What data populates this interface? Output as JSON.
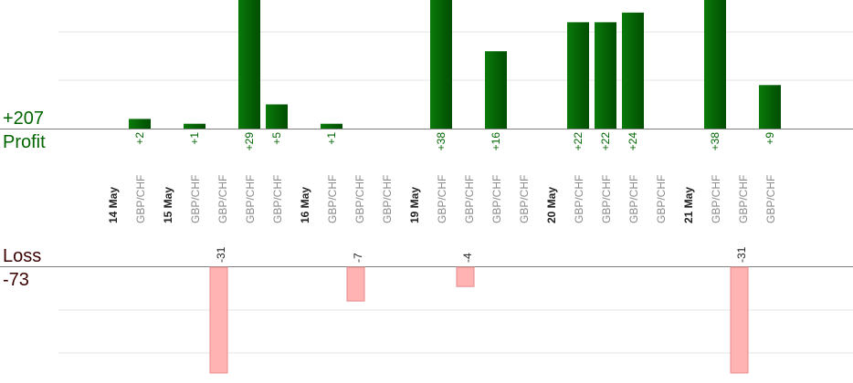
{
  "summary": {
    "profit_total": "+207",
    "profit_label": "Profit",
    "loss_label": "Loss",
    "loss_total": "-73"
  },
  "colors": {
    "profit_bar_dark": "#004d00",
    "profit_bar_light": "#0a7a0a",
    "profit_text": "#006400",
    "loss_bar": "#ffb3b3",
    "loss_bar_edge": "#e88a8a",
    "grid": "#e6e6e6",
    "axis": "#808080",
    "date_text": "#222222",
    "pair_text": "#8a8a8a"
  },
  "chart_data": {
    "type": "bar",
    "columns": [
      {
        "label": "14 May",
        "kind": "date",
        "profit": null,
        "loss": null
      },
      {
        "label": "GBP/CHF",
        "kind": "trade",
        "profit": 2,
        "profit_label": "+2",
        "loss": null
      },
      {
        "label": "15 May",
        "kind": "date",
        "profit": null,
        "loss": null
      },
      {
        "label": "GBP/CHF",
        "kind": "trade",
        "profit": 1,
        "profit_label": "+1",
        "loss": null
      },
      {
        "label": "GBP/CHF",
        "kind": "trade",
        "profit": null,
        "loss": -31,
        "loss_label": "-31"
      },
      {
        "label": "GBP/CHF",
        "kind": "trade",
        "profit": 29,
        "profit_label": "+29",
        "loss": null
      },
      {
        "label": "GBP/CHF",
        "kind": "trade",
        "profit": 5,
        "profit_label": "+5",
        "loss": null
      },
      {
        "label": "16 May",
        "kind": "date",
        "profit": null,
        "loss": null
      },
      {
        "label": "GBP/CHF",
        "kind": "trade",
        "profit": 1,
        "profit_label": "+1",
        "loss": null
      },
      {
        "label": "GBP/CHF",
        "kind": "trade",
        "profit": null,
        "loss": -7,
        "loss_label": "-7"
      },
      {
        "label": "GBP/CHF",
        "kind": "trade",
        "profit": null,
        "loss": null
      },
      {
        "label": "19 May",
        "kind": "date",
        "profit": null,
        "loss": null
      },
      {
        "label": "GBP/CHF",
        "kind": "trade",
        "profit": 38,
        "profit_label": "+38",
        "loss": null
      },
      {
        "label": "GBP/CHF",
        "kind": "trade",
        "profit": null,
        "loss": -4,
        "loss_label": "-4"
      },
      {
        "label": "GBP/CHF",
        "kind": "trade",
        "profit": 16,
        "profit_label": "+16",
        "loss": null
      },
      {
        "label": "GBP/CHF",
        "kind": "trade",
        "profit": null,
        "loss": null
      },
      {
        "label": "20 May",
        "kind": "date",
        "profit": null,
        "loss": null
      },
      {
        "label": "GBP/CHF",
        "kind": "trade",
        "profit": 22,
        "profit_label": "+22",
        "loss": null
      },
      {
        "label": "GBP/CHF",
        "kind": "trade",
        "profit": 22,
        "profit_label": "+22",
        "loss": null
      },
      {
        "label": "GBP/CHF",
        "kind": "trade",
        "profit": 24,
        "profit_label": "+24",
        "loss": null
      },
      {
        "label": "GBP/CHF",
        "kind": "trade",
        "profit": null,
        "loss": null
      },
      {
        "label": "21 May",
        "kind": "date",
        "profit": null,
        "loss": null
      },
      {
        "label": "GBP/CHF",
        "kind": "trade",
        "profit": 38,
        "profit_label": "+38",
        "loss": null
      },
      {
        "label": "GBP/CHF",
        "kind": "trade",
        "profit": null,
        "loss": -31,
        "loss_label": "-31"
      },
      {
        "label": "GBP/CHF",
        "kind": "trade",
        "profit": 9,
        "profit_label": "+9",
        "loss": null
      }
    ],
    "profit_axis_max": 27,
    "loss_axis_max": 27,
    "grid": true
  }
}
